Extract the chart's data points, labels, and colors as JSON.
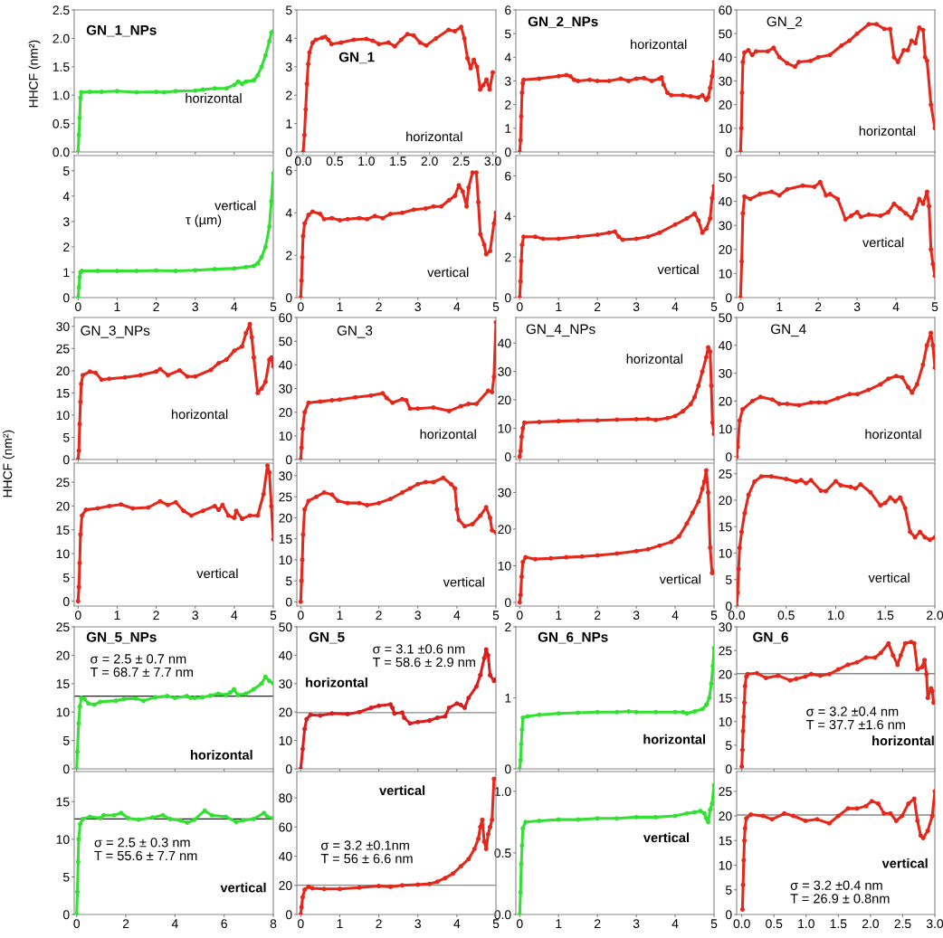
{
  "chart_data": [
    {
      "type": "line",
      "title": "GN_1_NPs",
      "ylabel": "HHCF (nm²)",
      "color": "#33e033",
      "marker": "circle",
      "tick_labels": "y",
      "xlim": [
        -0.1,
        5
      ],
      "xticks": [
        0,
        1,
        2,
        3,
        4,
        5
      ],
      "ylim": [
        0,
        2.5
      ],
      "yticks": [
        {
          "value": 0,
          "label": "0.0"
        },
        {
          "value": 0.5,
          "label": "0.5"
        },
        {
          "value": 1,
          "label": "1.0"
        },
        {
          "value": 1.5,
          "label": "1.5"
        },
        {
          "value": 2,
          "label": "2.0"
        },
        {
          "value": 2.5,
          "label": "2.5"
        }
      ],
      "annotations": [
        "horizontal"
      ],
      "x": [
        0,
        0.02,
        0.04,
        0.06,
        0.08,
        0.3,
        0.6,
        1,
        1.5,
        2,
        2.2,
        2.5,
        3,
        3.2,
        3.5,
        3.8,
        4.0,
        4.1,
        4.2,
        4.3,
        4.5,
        4.6,
        4.7,
        4.8,
        4.9,
        4.95,
        5.0
      ],
      "values": [
        0,
        0.3,
        0.6,
        0.95,
        1.05,
        1.06,
        1.06,
        1.07,
        1.05,
        1.06,
        1.05,
        1.07,
        1.08,
        1.1,
        1.12,
        1.12,
        1.18,
        1.24,
        1.2,
        1.24,
        1.26,
        1.35,
        1.5,
        1.7,
        1.95,
        2.1,
        2.12
      ]
    },
    {
      "type": "line",
      "title": "GN_1",
      "color": "#e4281c",
      "marker": "circle",
      "xlim": [
        -0.1,
        3.05
      ],
      "xticks": [
        {
          "value": 0,
          "label": "0.0"
        },
        {
          "value": 0.5,
          "label": "0.5"
        },
        {
          "value": 1,
          "label": "1.0"
        },
        {
          "value": 1.5,
          "label": "1.5"
        },
        {
          "value": 2,
          "label": "2.0"
        },
        {
          "value": 2.5,
          "label": "2.5"
        },
        {
          "value": 3,
          "label": "3.0"
        }
      ],
      "ylim": [
        0,
        5
      ],
      "yticks": [
        0,
        1,
        2,
        3,
        4,
        5
      ],
      "annotations": [
        "horizontal"
      ],
      "x": [
        0.0,
        0.02,
        0.04,
        0.06,
        0.08,
        0.1,
        0.15,
        0.2,
        0.3,
        0.35,
        0.4,
        0.45,
        0.6,
        0.8,
        1.0,
        1.1,
        1.2,
        1.35,
        1.45,
        1.55,
        1.65,
        1.75,
        1.85,
        1.95,
        2.1,
        2.3,
        2.4,
        2.5,
        2.55,
        2.6,
        2.65,
        2.7,
        2.75,
        2.8,
        2.85,
        2.9,
        2.95,
        3.0
      ],
      "values": [
        0.0,
        0.6,
        1.5,
        2.4,
        3.1,
        3.5,
        3.85,
        3.95,
        4.02,
        4.05,
        3.95,
        3.8,
        3.85,
        3.95,
        3.98,
        3.92,
        3.8,
        3.85,
        3.72,
        3.95,
        4.15,
        4.1,
        3.85,
        3.75,
        4.0,
        4.3,
        4.25,
        4.4,
        4.0,
        3.3,
        2.95,
        3.25,
        3.0,
        2.2,
        2.35,
        2.55,
        2.2,
        2.8
      ]
    },
    {
      "type": "line",
      "title": "GN_2_NPs",
      "color": "#e4281c",
      "marker": "circle",
      "tick_labels": "y",
      "xlim": [
        -0.1,
        5
      ],
      "xticks": [
        0,
        1,
        2,
        3,
        4,
        5
      ],
      "ylim": [
        0,
        6
      ],
      "yticks": [
        0,
        1,
        2,
        3,
        4,
        5,
        6
      ],
      "annotations": [
        "horizontal"
      ],
      "x": [
        0,
        0.02,
        0.04,
        0.06,
        0.08,
        0.1,
        0.5,
        1,
        1.2,
        1.3,
        1.4,
        1.5,
        1.8,
        2,
        2.3,
        2.6,
        2.8,
        3.0,
        3.2,
        3.4,
        3.6,
        3.65,
        3.7,
        3.8,
        3.9,
        4.2,
        4.4,
        4.6,
        4.7,
        4.8,
        4.85,
        4.9,
        4.95,
        5.0
      ],
      "values": [
        0,
        0.5,
        1.5,
        2.5,
        2.9,
        3.05,
        3.1,
        3.2,
        3.25,
        3.2,
        3.05,
        3.0,
        3.05,
        3.0,
        3.0,
        3.1,
        3.0,
        3.1,
        3.12,
        3.0,
        3.1,
        3.15,
        2.85,
        2.5,
        2.4,
        2.4,
        2.35,
        2.3,
        2.4,
        2.2,
        2.3,
        2.7,
        3.2,
        3.8
      ]
    },
    {
      "type": "line",
      "title": "GN_2",
      "color": "#e4281c",
      "marker": "circle",
      "tick_labels": "y",
      "xlim": [
        -0.1,
        5
      ],
      "xticks": [
        0,
        1,
        2,
        3,
        4,
        5
      ],
      "ylim": [
        0,
        60
      ],
      "yticks": [
        0,
        10,
        20,
        30,
        40,
        50,
        60
      ],
      "annotations": [
        "horizontal"
      ],
      "x": [
        0,
        0.02,
        0.04,
        0.06,
        0.1,
        0.2,
        0.3,
        0.4,
        0.7,
        0.85,
        1.0,
        1.2,
        1.4,
        1.5,
        1.8,
        2.0,
        2.3,
        2.6,
        2.8,
        3.0,
        3.3,
        3.5,
        3.7,
        3.85,
        3.95,
        4.05,
        4.2,
        4.3,
        4.4,
        4.5,
        4.6,
        4.7,
        4.75,
        4.8,
        4.9,
        5.0
      ],
      "values": [
        0,
        10,
        25,
        38,
        42,
        43,
        41,
        42.5,
        42.5,
        44,
        40,
        37.5,
        36,
        38,
        38.5,
        40,
        41,
        45,
        47,
        50,
        54,
        54,
        52,
        52,
        40,
        38,
        43,
        43,
        47,
        46,
        52.5,
        51.5,
        40,
        38.5,
        20,
        10
      ]
    },
    {
      "type": "line",
      "color": "#33e033",
      "marker": "circle",
      "xlim": [
        -0.1,
        5
      ],
      "xticks": [
        0,
        1,
        2,
        3,
        4,
        5
      ],
      "ylim": [
        0,
        5.6
      ],
      "yticks": [
        0,
        1,
        2,
        3,
        4,
        5
      ],
      "annotations": [
        "vertical",
        "τ (µm)"
      ],
      "x": [
        0,
        0.02,
        0.04,
        0.06,
        0.1,
        0.5,
        1,
        1.5,
        2,
        2.5,
        3,
        3.5,
        4,
        4.3,
        4.5,
        4.6,
        4.7,
        4.8,
        4.9,
        4.95,
        5.0
      ],
      "values": [
        0,
        0.4,
        0.8,
        1.0,
        1.05,
        1.05,
        1.05,
        1.05,
        1.07,
        1.05,
        1.08,
        1.12,
        1.15,
        1.2,
        1.25,
        1.35,
        1.6,
        2.0,
        2.8,
        3.8,
        4.9
      ]
    },
    {
      "type": "line",
      "color": "#e4281c",
      "marker": "circle",
      "xlim": [
        -0.1,
        5
      ],
      "xticks": [
        0,
        1,
        2,
        3,
        4,
        5
      ],
      "ylim": [
        0,
        6.7
      ],
      "yticks": [
        0,
        2,
        4,
        6
      ],
      "annotations": [
        "vertical"
      ],
      "x": [
        0,
        0.02,
        0.04,
        0.06,
        0.1,
        0.2,
        0.3,
        0.5,
        0.6,
        0.8,
        1.0,
        1.2,
        1.5,
        1.7,
        1.9,
        2.1,
        2.3,
        2.6,
        2.9,
        3.2,
        3.4,
        3.6,
        3.8,
        3.95,
        4.05,
        4.15,
        4.25,
        4.3,
        4.4,
        4.5,
        4.55,
        4.6,
        4.7,
        4.75,
        4.85,
        4.95,
        5.0
      ],
      "values": [
        0,
        0.8,
        1.9,
        2.9,
        3.5,
        3.9,
        4.05,
        3.95,
        3.7,
        3.75,
        3.65,
        3.7,
        3.75,
        3.7,
        3.85,
        3.75,
        3.95,
        4.0,
        4.15,
        4.2,
        4.3,
        4.3,
        4.6,
        4.8,
        5.3,
        5.0,
        4.3,
        5.2,
        5.9,
        5.9,
        4.5,
        3.0,
        2.5,
        2.05,
        2.2,
        3.5,
        4.0
      ]
    },
    {
      "type": "line",
      "color": "#e4281c",
      "marker": "circle",
      "xlim": [
        -0.1,
        5
      ],
      "xticks": [
        0,
        1,
        2,
        3,
        4,
        5
      ],
      "ylim": [
        0,
        7
      ],
      "yticks": [
        0,
        2,
        4,
        6
      ],
      "annotations": [
        "vertical"
      ],
      "x": [
        0,
        0.02,
        0.04,
        0.06,
        0.1,
        0.4,
        0.6,
        1.0,
        1.5,
        2.0,
        2.3,
        2.45,
        2.55,
        2.65,
        3.0,
        3.3,
        3.6,
        4.0,
        4.3,
        4.5,
        4.6,
        4.7,
        4.8,
        4.9,
        4.95,
        5.0
      ],
      "values": [
        0,
        0.8,
        1.8,
        2.6,
        3.0,
        3.0,
        2.9,
        2.9,
        3.0,
        3.1,
        3.2,
        3.25,
        3.0,
        2.85,
        2.9,
        3.0,
        3.2,
        3.6,
        3.9,
        4.15,
        3.8,
        3.2,
        3.4,
        3.9,
        4.9,
        5.5
      ]
    },
    {
      "type": "line",
      "color": "#e4281c",
      "marker": "circle",
      "xlim": [
        -0.1,
        5
      ],
      "xticks": [
        0,
        1,
        2,
        3,
        4,
        5
      ],
      "ylim": [
        0,
        59
      ],
      "yticks": [
        0,
        10,
        20,
        30,
        40,
        50
      ],
      "annotations": [
        "vertical"
      ],
      "x": [
        0,
        0.03,
        0.06,
        0.1,
        0.25,
        0.5,
        0.8,
        1.0,
        1.2,
        1.6,
        1.9,
        2.05,
        2.2,
        2.3,
        2.5,
        2.7,
        2.85,
        3.0,
        3.1,
        3.3,
        3.6,
        3.8,
        3.95,
        4.1,
        4.25,
        4.4,
        4.5,
        4.6,
        4.7,
        4.8,
        4.85,
        4.9,
        4.95,
        5.0
      ],
      "values": [
        0,
        15,
        35,
        42,
        41,
        43,
        44,
        42.5,
        45,
        46.5,
        46,
        48,
        42.5,
        43,
        41,
        32.5,
        34,
        35.5,
        33.5,
        34.5,
        34,
        35.5,
        39,
        37,
        35,
        33,
        36,
        41,
        39,
        44,
        38,
        20,
        14,
        9
      ]
    },
    {
      "type": "line",
      "title": "GN_3_NPs",
      "ylabel": "HHCF (nm²)",
      "color": "#e4281c",
      "marker": "circle",
      "tick_labels": "y",
      "xlim": [
        -0.1,
        5
      ],
      "xticks": [
        0,
        1,
        2,
        3,
        4,
        5
      ],
      "ylim": [
        0,
        32
      ],
      "yticks": [
        0,
        5,
        10,
        15,
        20,
        25,
        30
      ],
      "annotations": [
        "horizontal"
      ],
      "x": [
        0,
        0.02,
        0.04,
        0.06,
        0.08,
        0.12,
        0.3,
        0.45,
        0.6,
        0.8,
        1.2,
        1.6,
        2.0,
        2.1,
        2.3,
        2.6,
        2.8,
        3.0,
        3.4,
        3.6,
        3.8,
        4.0,
        4.2,
        4.3,
        4.4,
        4.45,
        4.5,
        4.6,
        4.7,
        4.8,
        4.9,
        4.95,
        5.0
      ],
      "values": [
        0,
        2,
        8,
        13,
        17,
        19,
        19.8,
        19.5,
        18,
        18.2,
        18.5,
        19,
        19.8,
        20.4,
        19,
        20.1,
        18.7,
        18.7,
        20.2,
        21.7,
        22.5,
        24.5,
        25.5,
        28.5,
        30.5,
        27.5,
        23,
        15,
        16,
        17.5,
        22.5,
        23,
        21
      ]
    },
    {
      "type": "line",
      "title": "GN_3",
      "color": "#e4281c",
      "marker": "circle",
      "tick_labels": "y",
      "xlim": [
        -0.1,
        5
      ],
      "xticks": [
        0,
        1,
        2,
        3,
        4,
        5
      ],
      "ylim": [
        0,
        60
      ],
      "yticks": [
        0,
        10,
        20,
        30,
        40,
        50,
        60
      ],
      "annotations": [
        "horizontal"
      ],
      "x": [
        0,
        0.02,
        0.05,
        0.1,
        0.2,
        0.5,
        0.8,
        1.0,
        1.4,
        1.8,
        2.1,
        2.2,
        2.35,
        2.6,
        2.7,
        2.8,
        3.0,
        3.4,
        3.8,
        4.1,
        4.3,
        4.5,
        4.8,
        4.9,
        4.95,
        5.0
      ],
      "values": [
        0,
        5,
        13,
        20,
        24,
        24.5,
        25,
        25.3,
        26.3,
        27,
        28,
        26,
        24,
        25.5,
        25,
        21.5,
        21.5,
        22,
        20.5,
        22.5,
        23.5,
        23.5,
        29,
        28.5,
        35,
        58
      ]
    },
    {
      "type": "line",
      "title": "GN_4_NPs",
      "color": "#e4281c",
      "marker": "circle",
      "tick_labels": "y",
      "xlim": [
        -0.1,
        5
      ],
      "xticks": [
        0,
        1,
        2,
        3,
        4,
        5
      ],
      "ylim": [
        -1,
        49
      ],
      "yticks": [
        0,
        10,
        20,
        30,
        40
      ],
      "annotations": [
        "horizontal"
      ],
      "x": [
        0,
        0.02,
        0.05,
        0.08,
        0.12,
        0.5,
        1.0,
        1.5,
        2.0,
        2.5,
        3.0,
        3.3,
        3.5,
        3.8,
        4.0,
        4.2,
        4.4,
        4.5,
        4.6,
        4.7,
        4.8,
        4.85,
        4.9,
        4.93,
        4.96,
        5.0
      ],
      "values": [
        0,
        2,
        7,
        10,
        12,
        12.2,
        12.5,
        12.7,
        12.8,
        13,
        13.2,
        13.3,
        12.9,
        13.6,
        14.3,
        16,
        18.5,
        21,
        25,
        30,
        35,
        38.5,
        37,
        25,
        12,
        8
      ]
    },
    {
      "type": "line",
      "title": "GN_4",
      "color": "#e4281c",
      "marker": "circle",
      "tick_labels": "y",
      "xlim": [
        0,
        2
      ],
      "xticks": [
        0,
        0.5,
        1,
        1.5,
        2
      ],
      "ylim": [
        -1,
        50
      ],
      "yticks": [
        0,
        10,
        20,
        30,
        40,
        50
      ],
      "annotations": [
        "horizontal"
      ],
      "x": [
        0,
        0.01,
        0.03,
        0.06,
        0.16,
        0.24,
        0.36,
        0.43,
        0.51,
        0.63,
        0.75,
        0.83,
        0.9,
        1.02,
        1.14,
        1.22,
        1.33,
        1.45,
        1.53,
        1.61,
        1.67,
        1.73,
        1.77,
        1.82,
        1.88,
        1.92,
        1.96,
        1.98,
        2.0
      ],
      "values": [
        0,
        3.5,
        13,
        17,
        20,
        21.5,
        20.5,
        19,
        19,
        18.5,
        19.5,
        19.5,
        19.5,
        21,
        22.5,
        22.5,
        24,
        26,
        28,
        29,
        28.5,
        25,
        23,
        26,
        33,
        40,
        44.5,
        40,
        32
      ]
    },
    {
      "type": "line",
      "color": "#e4281c",
      "marker": "circle",
      "xlim": [
        -0.1,
        5
      ],
      "xticks": [
        0,
        1,
        2,
        3,
        4,
        5
      ],
      "ylim": [
        -1,
        29
      ],
      "yticks": [
        0,
        5,
        10,
        15,
        20,
        25
      ],
      "annotations": [
        "vertical"
      ],
      "x": [
        0,
        0.02,
        0.04,
        0.06,
        0.1,
        0.2,
        0.5,
        0.8,
        1.1,
        1.4,
        1.8,
        2.1,
        2.3,
        2.5,
        2.7,
        2.9,
        3.2,
        3.5,
        3.6,
        3.7,
        3.85,
        4.0,
        4.05,
        4.2,
        4.4,
        4.6,
        4.75,
        4.85,
        4.9,
        4.95,
        5.0
      ],
      "values": [
        0,
        3,
        8,
        14,
        18,
        19.2,
        19.5,
        20,
        20.3,
        19.5,
        19.7,
        21,
        20.2,
        20.8,
        19,
        18,
        19,
        20,
        19.2,
        20.2,
        18,
        17.5,
        19,
        17.3,
        18,
        18,
        22.5,
        28.5,
        27,
        20,
        13
      ]
    },
    {
      "type": "line",
      "color": "#e4281c",
      "marker": "circle",
      "xlim": [
        -0.1,
        5
      ],
      "xticks": [
        0,
        1,
        2,
        3,
        4,
        5
      ],
      "ylim": [
        -1,
        33
      ],
      "yticks": [
        0,
        5,
        10,
        15,
        20,
        25,
        30
      ],
      "annotations": [
        "vertical"
      ],
      "x": [
        0,
        0.02,
        0.04,
        0.06,
        0.1,
        0.2,
        0.4,
        0.6,
        0.8,
        0.95,
        1.2,
        1.5,
        1.7,
        2.0,
        2.3,
        2.6,
        2.8,
        3.0,
        3.2,
        3.4,
        3.65,
        3.85,
        3.95,
        4.0,
        4.05,
        4.2,
        4.4,
        4.6,
        4.75,
        4.85,
        4.9,
        5.0
      ],
      "values": [
        0,
        5,
        10,
        16,
        22,
        24,
        25,
        26,
        25.5,
        24,
        23.5,
        23.5,
        23,
        23.5,
        24.5,
        26,
        27,
        28,
        28.5,
        28.5,
        29.5,
        28,
        27,
        22,
        19.5,
        18,
        18.5,
        20.5,
        22.5,
        20,
        17,
        16.5
      ]
    },
    {
      "type": "line",
      "color": "#e4281c",
      "marker": "circle",
      "xlim": [
        -0.1,
        5
      ],
      "xticks": [
        0,
        1,
        2,
        3,
        4,
        5
      ],
      "ylim": [
        -1,
        38
      ],
      "yticks": [
        0,
        10,
        20,
        30
      ],
      "annotations": [
        "vertical"
      ],
      "x": [
        0,
        0.02,
        0.05,
        0.08,
        0.15,
        0.4,
        0.8,
        1.2,
        1.6,
        2.0,
        2.5,
        3.0,
        3.3,
        3.6,
        3.9,
        4.1,
        4.3,
        4.45,
        4.6,
        4.7,
        4.75,
        4.8,
        4.85,
        4.9,
        4.95,
        5.0
      ],
      "values": [
        0,
        2,
        7,
        11,
        12.3,
        11.8,
        12,
        12.3,
        12.5,
        12.8,
        13.3,
        14,
        14.5,
        15.5,
        16.5,
        18,
        21.5,
        24.5,
        27.5,
        31,
        33,
        36,
        30,
        15,
        8,
        8.5
      ]
    },
    {
      "type": "line",
      "color": "#e4281c",
      "marker": "circle",
      "xlim": [
        0,
        2
      ],
      "xticks": [
        {
          "value": 0,
          "label": "0.0"
        },
        {
          "value": 0.5,
          "label": "0.5"
        },
        {
          "value": 1,
          "label": "1.0"
        },
        {
          "value": 1.5,
          "label": "1.5"
        },
        {
          "value": 2,
          "label": "2.0"
        }
      ],
      "ylim": [
        0,
        27
      ],
      "yticks": [
        0,
        5,
        10,
        15,
        20,
        25
      ],
      "annotations": [
        "vertical"
      ],
      "x": [
        0,
        0.01,
        0.02,
        0.03,
        0.05,
        0.08,
        0.12,
        0.18,
        0.25,
        0.35,
        0.5,
        0.6,
        0.65,
        0.7,
        0.75,
        0.85,
        0.9,
        1.0,
        1.05,
        1.15,
        1.2,
        1.25,
        1.35,
        1.45,
        1.5,
        1.55,
        1.6,
        1.65,
        1.7,
        1.75,
        1.8,
        1.85,
        1.9,
        1.95,
        2.0
      ],
      "values": [
        0,
        2.5,
        7,
        11,
        14,
        17.5,
        21,
        23.5,
        24.5,
        24.5,
        24,
        23.5,
        23.8,
        23.2,
        23.8,
        21.8,
        21.7,
        23.6,
        22.8,
        22.5,
        22.2,
        23,
        21.5,
        19,
        19.5,
        20.5,
        19.8,
        20.5,
        18.5,
        14,
        13,
        14,
        13,
        12.5,
        13
      ]
    },
    {
      "type": "line",
      "title": "GN_5_NPs",
      "color": "#33e033",
      "marker": "circle",
      "tick_labels": "y",
      "xlim": [
        -0.1,
        8
      ],
      "xticks": [
        0,
        2,
        4,
        6,
        8
      ],
      "ylim": [
        0,
        25
      ],
      "yticks": [
        0,
        5,
        10,
        15,
        20,
        25
      ],
      "annotations": [
        "σ = 2.5 ± 0.7 nm\nT = 68.7 ± 7.7 nm",
        "horizontal"
      ],
      "ref_lines": [
        {
          "axis": "y",
          "value": 12.8,
          "color": "#222222"
        }
      ],
      "x": [
        0,
        0.03,
        0.08,
        0.13,
        0.19,
        0.32,
        0.48,
        0.72,
        0.96,
        1.6,
        1.92,
        2.4,
        2.72,
        3.2,
        3.68,
        4.0,
        4.48,
        4.64,
        4.8,
        5.12,
        5.44,
        5.76,
        6.08,
        6.24,
        6.4,
        6.56,
        6.88,
        7.2,
        7.52,
        7.68,
        7.84,
        8.0
      ],
      "values": [
        0,
        3,
        8,
        11,
        12.5,
        12.3,
        11.5,
        11.3,
        11.8,
        12,
        12.3,
        12.4,
        12,
        12.6,
        12.8,
        12.5,
        12.8,
        12.5,
        12.5,
        12.6,
        12.9,
        13.2,
        13,
        13.4,
        14,
        13,
        13.2,
        14,
        15,
        16.2,
        15.5,
        15
      ]
    },
    {
      "type": "line",
      "title": "GN_5",
      "color": "#d81e1e",
      "marker": "circle",
      "tick_labels": "y",
      "xlim": [
        -0.1,
        5
      ],
      "xticks": [
        0,
        1,
        2,
        3,
        4,
        5
      ],
      "ylim": [
        0,
        50
      ],
      "yticks": [
        0,
        10,
        20,
        30,
        40,
        50
      ],
      "annotations": [
        "σ = 3.1 ±0.6 nm\nT = 58.6 ± 2.9 nm",
        "horizontal"
      ],
      "ref_lines": [
        {
          "axis": "y",
          "value": 19.8,
          "color": "#888888"
        }
      ],
      "x": [
        0,
        0.05,
        0.1,
        0.15,
        0.25,
        0.5,
        0.8,
        1.2,
        1.5,
        1.8,
        2.0,
        2.3,
        2.35,
        2.4,
        2.6,
        2.65,
        2.8,
        3.0,
        3.3,
        3.5,
        3.7,
        3.8,
        4.0,
        4.1,
        4.2,
        4.3,
        4.5,
        4.6,
        4.7,
        4.75,
        4.8,
        4.85,
        4.95,
        5.0
      ],
      "values": [
        0,
        7,
        14,
        17.5,
        19,
        18.8,
        19.5,
        19.3,
        20,
        21.5,
        22.2,
        22.7,
        21.5,
        19.5,
        19.8,
        18,
        16,
        16.5,
        17,
        18,
        18.5,
        21.5,
        23,
        22.5,
        21.5,
        25,
        29,
        33,
        39,
        42,
        40,
        33,
        31,
        31.5
      ]
    },
    {
      "type": "line",
      "title": "GN_6_NPs",
      "color": "#33e033",
      "marker": "circle",
      "tick_labels": "y",
      "xlim": [
        -0.1,
        5
      ],
      "xticks": [
        0,
        1,
        2,
        3,
        4,
        5
      ],
      "ylim": [
        0,
        2
      ],
      "yticks": [
        0,
        1,
        2
      ],
      "annotations": [
        "horizontal"
      ],
      "x": [
        0,
        0.02,
        0.04,
        0.06,
        0.08,
        0.2,
        0.5,
        1.0,
        1.5,
        2.0,
        2.5,
        2.8,
        3.0,
        3.5,
        4.0,
        4.2,
        4.3,
        4.5,
        4.7,
        4.8,
        4.88,
        4.93,
        4.97,
        5.0
      ],
      "values": [
        0,
        0.12,
        0.35,
        0.55,
        0.72,
        0.74,
        0.76,
        0.78,
        0.79,
        0.8,
        0.8,
        0.81,
        0.8,
        0.8,
        0.8,
        0.8,
        0.78,
        0.81,
        0.84,
        0.9,
        1.0,
        1.2,
        1.45,
        1.7
      ]
    },
    {
      "type": "line",
      "title": "GN_6",
      "color": "#e4281c",
      "marker": "circle",
      "tick_labels": "y",
      "xlim": [
        -0.08,
        3
      ],
      "xticks": [
        0,
        0.5,
        1,
        1.5,
        2,
        2.5,
        3
      ],
      "ylim": [
        0,
        30
      ],
      "yticks": [
        0,
        5,
        10,
        15,
        20,
        25,
        30
      ],
      "annotations": [
        "σ = 3.2 ±0.4 nm\nT = 37.7 ±1.6 nm",
        "horizontal"
      ],
      "ref_lines": [
        {
          "axis": "y",
          "value": 20.1,
          "color": "#888888"
        }
      ],
      "x": [
        0.0,
        0.01,
        0.02,
        0.03,
        0.04,
        0.05,
        0.07,
        0.09,
        0.235,
        0.376,
        0.564,
        0.752,
        0.846,
        0.987,
        1.08,
        1.22,
        1.36,
        1.5,
        1.65,
        1.79,
        1.93,
        2.07,
        2.16,
        2.28,
        2.35,
        2.42,
        2.47,
        2.54,
        2.63,
        2.68,
        2.73,
        2.8,
        2.84,
        2.87,
        2.89,
        2.94,
        2.96,
        2.98
      ],
      "values": [
        0.5,
        4,
        8,
        11,
        14,
        17.5,
        19.5,
        20,
        20.2,
        19.2,
        19.7,
        18.7,
        19,
        19.5,
        20,
        19.7,
        20,
        21,
        22,
        22.5,
        23.5,
        23.5,
        24.5,
        26.5,
        24,
        22,
        24,
        26.5,
        26.8,
        26.5,
        21,
        21.5,
        23,
        20,
        15,
        17,
        16.5,
        14
      ]
    },
    {
      "type": "line",
      "color": "#33e033",
      "marker": "circle",
      "xlim": [
        -0.1,
        8
      ],
      "xticks": [
        0,
        2,
        4,
        6,
        8
      ],
      "ylim": [
        0,
        19
      ],
      "yticks": [
        0,
        5,
        10,
        15
      ],
      "annotations": [
        "σ = 2.5 ± 0.3 nm\nT = 55.6 ± 7.7 nm",
        "vertical"
      ],
      "ref_lines": [
        {
          "axis": "y",
          "value": 12.7,
          "color": "#222222"
        }
      ],
      "x": [
        0,
        0.03,
        0.06,
        0.08,
        0.14,
        0.25,
        0.54,
        0.96,
        1.1,
        1.53,
        1.81,
        2.09,
        2.52,
        3.09,
        3.51,
        3.8,
        4.22,
        4.5,
        4.79,
        5.21,
        5.5,
        6.07,
        6.49,
        6.77,
        7.2,
        7.62,
        7.76,
        8.0
      ],
      "values": [
        0,
        3,
        7,
        10,
        12,
        12.7,
        13,
        12.8,
        13.2,
        13.2,
        13.5,
        12.8,
        12.6,
        12.9,
        13.2,
        12.7,
        12.5,
        12.2,
        12.6,
        13.8,
        13.2,
        13,
        12.3,
        12.5,
        12.7,
        13.5,
        13,
        12.8
      ]
    },
    {
      "type": "line",
      "color": "#e4281c",
      "marker": "circle",
      "xlim": [
        -0.1,
        5
      ],
      "xticks": [
        0,
        1,
        2,
        3,
        4,
        5
      ],
      "ylim": [
        0,
        98
      ],
      "yticks": [
        0,
        20,
        40,
        60,
        80
      ],
      "annotations": [
        "vertical",
        "σ = 3.2 ±0.1nm\nT = 56 ± 6.6 nm"
      ],
      "ref_lines": [
        {
          "axis": "y",
          "value": 20.1,
          "color": "#888888"
        }
      ],
      "x": [
        0,
        0.02,
        0.05,
        0.1,
        0.2,
        0.3,
        0.6,
        1.0,
        1.5,
        2.0,
        2.3,
        2.6,
        3.0,
        3.3,
        3.5,
        3.7,
        3.9,
        4.1,
        4.3,
        4.45,
        4.55,
        4.6,
        4.65,
        4.7,
        4.75,
        4.8,
        4.85,
        4.9,
        4.95
      ],
      "values": [
        0,
        5,
        12,
        17,
        19,
        18,
        17.5,
        17.5,
        18.5,
        19.5,
        19,
        20,
        20.5,
        21,
        22.5,
        25,
        28,
        33,
        38,
        45,
        52,
        60,
        65,
        50,
        45,
        55,
        60,
        65,
        93
      ]
    },
    {
      "type": "line",
      "color": "#33e033",
      "marker": "circle",
      "xlim": [
        -0.1,
        5
      ],
      "xticks": [
        0,
        1,
        2,
        3,
        4,
        5
      ],
      "ylim": [
        0,
        1.16
      ],
      "yticks": [
        {
          "value": 0,
          "label": "0.0"
        },
        {
          "value": 0.5,
          "label": "0.5"
        },
        {
          "value": 1,
          "label": "1.0"
        }
      ],
      "annotations": [
        "vertical"
      ],
      "x": [
        0,
        0.02,
        0.04,
        0.06,
        0.08,
        0.15,
        0.5,
        1.0,
        1.5,
        2.0,
        2.5,
        3.0,
        3.5,
        4.0,
        4.3,
        4.5,
        4.65,
        4.75,
        4.8,
        4.85,
        4.9,
        4.95,
        5.0
      ],
      "values": [
        0,
        0.18,
        0.41,
        0.56,
        0.7,
        0.75,
        0.76,
        0.77,
        0.77,
        0.78,
        0.78,
        0.79,
        0.79,
        0.8,
        0.82,
        0.83,
        0.84,
        0.82,
        0.78,
        0.75,
        0.85,
        0.9,
        1.05
      ]
    },
    {
      "type": "line",
      "color": "#e4281c",
      "marker": "circle",
      "xlim": [
        -0.08,
        3
      ],
      "xticks": [
        {
          "value": 0,
          "label": "0.0"
        },
        {
          "value": 0.5,
          "label": "0.5"
        },
        {
          "value": 1,
          "label": "1.0"
        },
        {
          "value": 1.5,
          "label": "1.5"
        },
        {
          "value": 2,
          "label": "2.0"
        },
        {
          "value": 2.5,
          "label": "2.5"
        },
        {
          "value": 3,
          "label": "3.0"
        }
      ],
      "ylim": [
        0,
        29
      ],
      "yticks": [
        0,
        5,
        10,
        15,
        20,
        25
      ],
      "annotations": [
        "vertical",
        "σ = 3.2 ±0.4 nm\nT = 26.9 ± 0.8nm"
      ],
      "ref_lines": [
        {
          "axis": "y",
          "value": 20.2,
          "color": "#888888"
        }
      ],
      "x": [
        0.01,
        0.02,
        0.03,
        0.04,
        0.05,
        0.07,
        0.14,
        0.33,
        0.47,
        0.66,
        0.8,
        0.99,
        1.17,
        1.36,
        1.5,
        1.65,
        1.79,
        1.93,
        2.02,
        2.12,
        2.21,
        2.31,
        2.4,
        2.49,
        2.59,
        2.68,
        2.73,
        2.78,
        2.82,
        2.89,
        2.96,
        3.0
      ],
      "values": [
        1,
        6,
        11,
        15,
        17.5,
        19.5,
        20.3,
        20,
        19.3,
        20.5,
        20,
        19,
        19.3,
        18.5,
        20,
        21.5,
        21.5,
        22,
        23,
        22.5,
        20.5,
        20.5,
        19,
        20,
        22.5,
        23.5,
        19,
        16,
        15.5,
        17,
        20,
        25
      ]
    }
  ]
}
